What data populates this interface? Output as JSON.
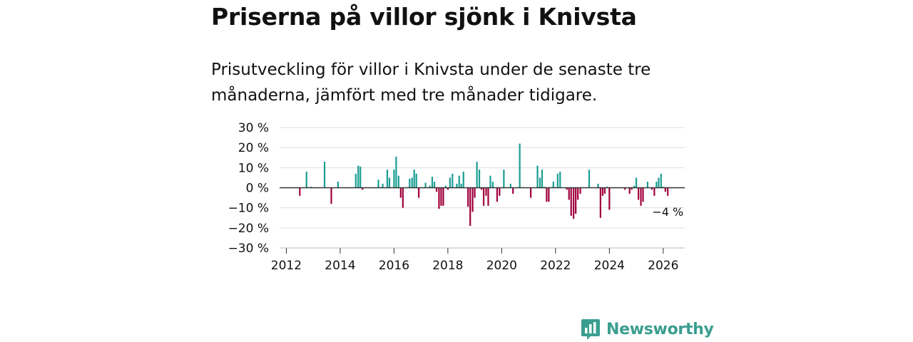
{
  "title": "Priserna på villor sjönk i Knivsta",
  "subtitle": "Prisutveckling för villor i Knivsta under de senaste tre månaderna, jämfört med tre månader tidigare.",
  "brand": "Newsworthy",
  "colors": {
    "positive": "#1a9e92",
    "negative": "#a0003c",
    "zero_line": "#333333",
    "grid": "#dddddd",
    "brand": "#3a9e8f"
  },
  "chart_data": {
    "type": "bar",
    "title": "Priserna på villor sjönk i Knivsta",
    "xlabel": "",
    "ylabel": "",
    "ylim": [
      -30,
      30
    ],
    "xlim": [
      2011.75,
      2026.8
    ],
    "yticks": [
      30,
      20,
      10,
      0,
      -10,
      -20,
      -30
    ],
    "ytick_labels": [
      "30 %",
      "20 %",
      "10 %",
      "0 %",
      "−10 %",
      "−20 %",
      "−30 %"
    ],
    "xticks": [
      2012,
      2014,
      2016,
      2018,
      2020,
      2022,
      2024,
      2026
    ],
    "xtick_labels": [
      "2012",
      "2014",
      "2016",
      "2018",
      "2020",
      "2022",
      "2024",
      "2026"
    ],
    "annotation": "−4 %",
    "series": [
      {
        "name": "Prisutveckling",
        "points": [
          [
            2012.5,
            -4
          ],
          [
            2012.75,
            8
          ],
          [
            2012.92,
            0.5
          ],
          [
            2013.42,
            13
          ],
          [
            2013.67,
            -8
          ],
          [
            2013.92,
            3
          ],
          [
            2014.58,
            7
          ],
          [
            2014.67,
            11
          ],
          [
            2014.75,
            10.5
          ],
          [
            2014.83,
            -1
          ],
          [
            2015.42,
            4
          ],
          [
            2015.58,
            2
          ],
          [
            2015.75,
            9
          ],
          [
            2015.83,
            5
          ],
          [
            2016.0,
            9
          ],
          [
            2016.08,
            15.5
          ],
          [
            2016.17,
            6
          ],
          [
            2016.25,
            -5
          ],
          [
            2016.33,
            -10
          ],
          [
            2016.58,
            4.5
          ],
          [
            2016.67,
            5
          ],
          [
            2016.75,
            9
          ],
          [
            2016.83,
            7
          ],
          [
            2016.92,
            -5
          ],
          [
            2017.17,
            2.5
          ],
          [
            2017.33,
            1
          ],
          [
            2017.42,
            5.5
          ],
          [
            2017.5,
            3
          ],
          [
            2017.58,
            -2
          ],
          [
            2017.67,
            -10.5
          ],
          [
            2017.75,
            -9
          ],
          [
            2017.83,
            -9
          ],
          [
            2017.92,
            1
          ],
          [
            2018.0,
            -1
          ],
          [
            2018.08,
            5
          ],
          [
            2018.17,
            7
          ],
          [
            2018.33,
            2
          ],
          [
            2018.42,
            6
          ],
          [
            2018.5,
            2
          ],
          [
            2018.58,
            8
          ],
          [
            2018.75,
            -9.5
          ],
          [
            2018.83,
            -19
          ],
          [
            2018.92,
            -12
          ],
          [
            2019.0,
            -5
          ],
          [
            2019.08,
            13
          ],
          [
            2019.17,
            9
          ],
          [
            2019.25,
            -1
          ],
          [
            2019.33,
            -9
          ],
          [
            2019.42,
            -4
          ],
          [
            2019.5,
            -9
          ],
          [
            2019.58,
            6
          ],
          [
            2019.67,
            3
          ],
          [
            2019.83,
            -7
          ],
          [
            2019.92,
            -4
          ],
          [
            2020.08,
            9
          ],
          [
            2020.33,
            2
          ],
          [
            2020.42,
            -3
          ],
          [
            2020.67,
            22
          ],
          [
            2021.08,
            -5
          ],
          [
            2021.33,
            11
          ],
          [
            2021.42,
            5
          ],
          [
            2021.5,
            9
          ],
          [
            2021.58,
            0.5
          ],
          [
            2021.67,
            -7
          ],
          [
            2021.75,
            -7
          ],
          [
            2021.92,
            3
          ],
          [
            2022.08,
            7
          ],
          [
            2022.17,
            8
          ],
          [
            2022.42,
            -1
          ],
          [
            2022.5,
            -6
          ],
          [
            2022.58,
            -14
          ],
          [
            2022.67,
            -15.5
          ],
          [
            2022.75,
            -13
          ],
          [
            2022.83,
            -6
          ],
          [
            2022.92,
            -3
          ],
          [
            2023.25,
            9
          ],
          [
            2023.58,
            2
          ],
          [
            2023.67,
            -15
          ],
          [
            2023.75,
            -4
          ],
          [
            2023.83,
            -3
          ],
          [
            2023.92,
            0.5
          ],
          [
            2024.0,
            -11
          ],
          [
            2024.58,
            -1
          ],
          [
            2024.75,
            -3
          ],
          [
            2024.83,
            -1
          ],
          [
            2024.92,
            1
          ],
          [
            2025.0,
            5
          ],
          [
            2025.08,
            -6
          ],
          [
            2025.17,
            -9
          ],
          [
            2025.25,
            -7
          ],
          [
            2025.42,
            3
          ],
          [
            2025.58,
            -1
          ],
          [
            2025.67,
            -4
          ],
          [
            2025.75,
            3
          ],
          [
            2025.83,
            5
          ],
          [
            2025.92,
            7
          ],
          [
            2026.0,
            0.5
          ],
          [
            2026.08,
            -2
          ],
          [
            2026.17,
            -4
          ]
        ]
      }
    ]
  }
}
